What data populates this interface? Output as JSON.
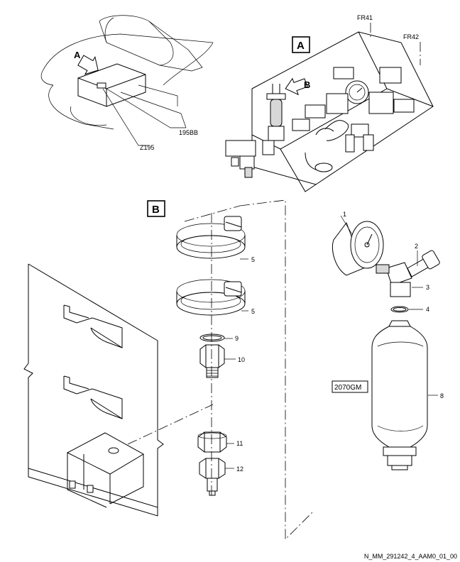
{
  "views": {
    "a": {
      "letter": "A",
      "arrow_label": "A"
    },
    "b": {
      "letter": "B",
      "arrow_label": "B"
    }
  },
  "references": {
    "frame_41": "FR41",
    "frame_42": "FR42",
    "zone": "Z195",
    "access": "195BB",
    "equipment": "2070GM"
  },
  "items": [
    {
      "id": "1"
    },
    {
      "id": "2"
    },
    {
      "id": "3"
    },
    {
      "id": "4"
    },
    {
      "id": "5"
    },
    {
      "id": "5"
    },
    {
      "id": "8"
    },
    {
      "id": "9"
    },
    {
      "id": "10"
    },
    {
      "id": "11"
    },
    {
      "id": "12"
    }
  ],
  "figure_id": "N_MM_291242_4_AAM0_01_00"
}
